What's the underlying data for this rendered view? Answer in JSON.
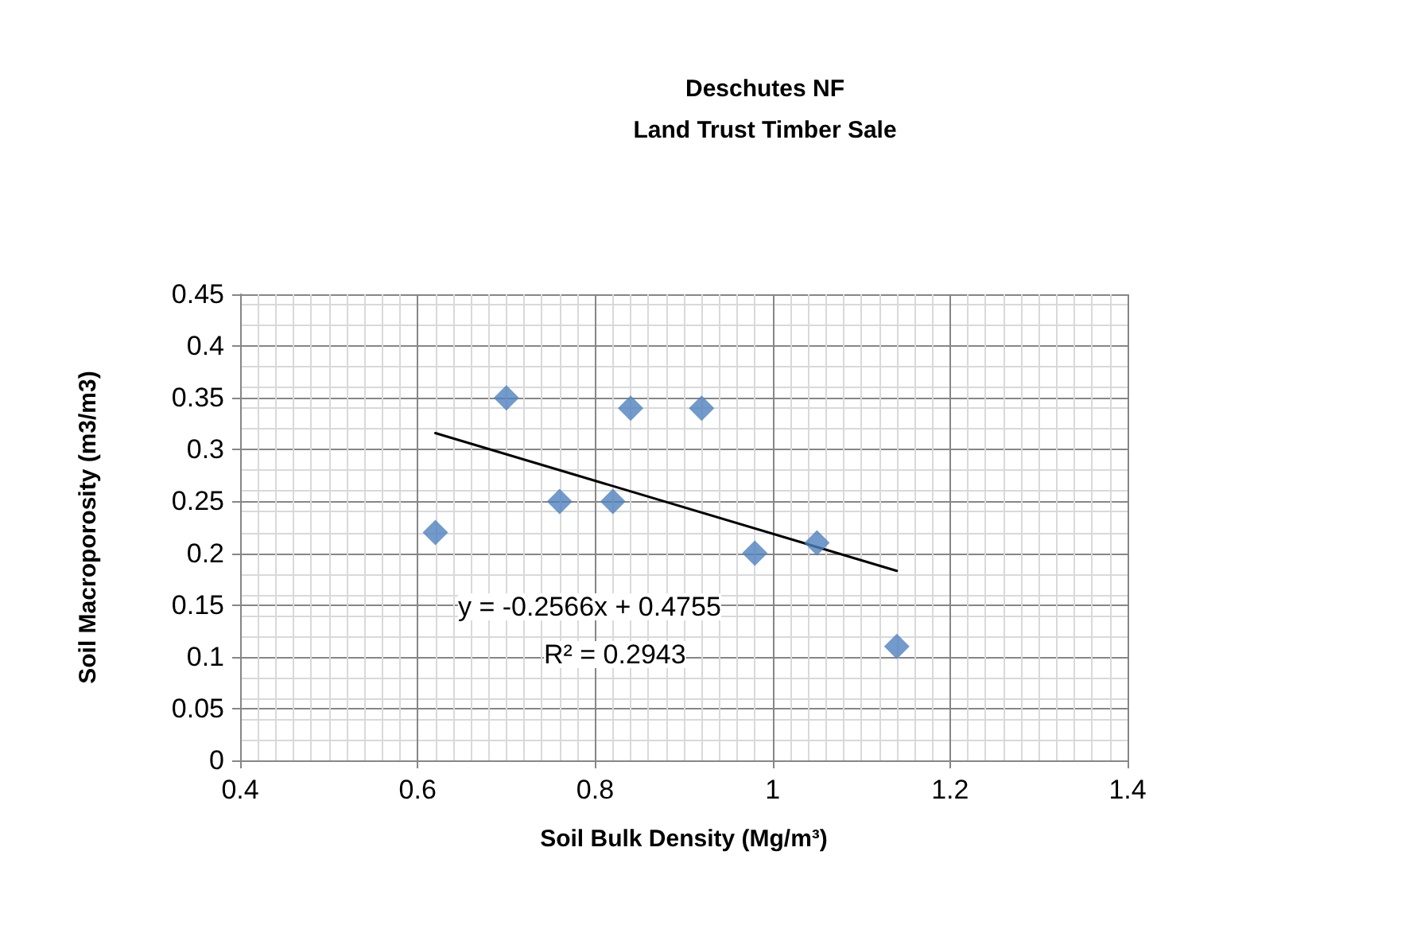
{
  "chart_data": {
    "type": "scatter",
    "title": "Deschutes NF\nLand Trust Timber Sale",
    "xlabel": "Soil Bulk Density (Mg/m³)",
    "ylabel": "Soil Macroporosity (m3/m3)",
    "series": [
      {
        "type": "scatter",
        "color": "#4f81bd",
        "x": [
          0.62,
          0.7,
          0.76,
          0.82,
          0.84,
          0.92,
          0.98,
          1.05,
          1.14
        ],
        "values": [
          0.22,
          0.35,
          0.25,
          0.25,
          0.34,
          0.34,
          0.2,
          0.21,
          0.11
        ],
        "marker": "diamond"
      },
      {
        "type": "line",
        "color": "#000000",
        "x": [
          0.62,
          1.14
        ],
        "values": [
          0.316,
          0.183
        ],
        "marker": "none",
        "line_style": "solid"
      }
    ],
    "xlim": [
      0.4,
      1.4
    ],
    "xticks": [
      0.4,
      0.6,
      0.8,
      1,
      1.2,
      1.4
    ],
    "ylim": [
      0,
      0.45
    ],
    "yticks": [
      0,
      0.05,
      0.1,
      0.15,
      0.2,
      0.25,
      0.3,
      0.35,
      0.4,
      0.45
    ],
    "grid": true,
    "legend": false,
    "annotations": [
      "y = -0.2566x + 0.4755",
      "R² = 0.2943"
    ]
  }
}
